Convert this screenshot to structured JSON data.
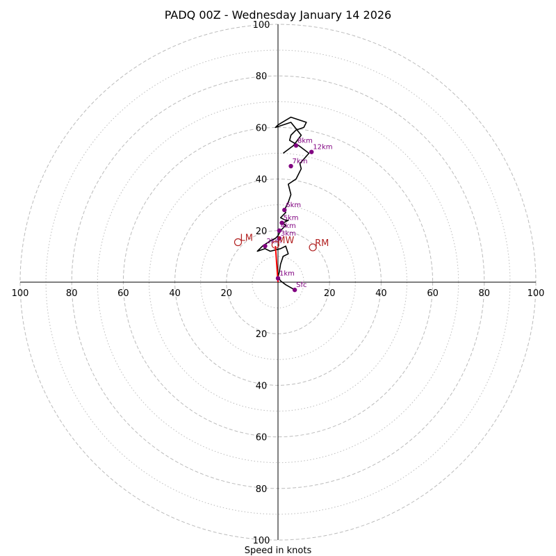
{
  "title": "PADQ 00Z - Wednesday January 14 2026",
  "chart_data": {
    "type": "line",
    "title": "PADQ 00Z - Wednesday January 14 2026",
    "xlabel": "Speed in knots",
    "ylabel": "",
    "xlim": [
      -100,
      100
    ],
    "ylim": [
      -100,
      100
    ],
    "grid": true,
    "ring_major": [
      20,
      40,
      60,
      80,
      100
    ],
    "ring_minor": [
      10,
      30,
      50,
      70,
      90
    ],
    "tick_labels": [
      "20",
      "40",
      "60",
      "80",
      "100"
    ],
    "hodograph": {
      "x": [
        6.5,
        3,
        1,
        0,
        0.5,
        1,
        2,
        4,
        3,
        1,
        -3,
        -5,
        -8,
        -6,
        -3,
        -1,
        0,
        1,
        2,
        3,
        2,
        4,
        3,
        1,
        2,
        3,
        2.5,
        4,
        5,
        4,
        7,
        9,
        8.5,
        12,
        8,
        4.5,
        5,
        7,
        10,
        11,
        5,
        0,
        -1,
        5,
        9,
        6,
        2
      ],
      "y": [
        -3,
        -1,
        0.5,
        2,
        4,
        7,
        10,
        11,
        14,
        13,
        12,
        13,
        12,
        14,
        16,
        17,
        18,
        20,
        21,
        22,
        23,
        24,
        24,
        25,
        26,
        27,
        28,
        31,
        34,
        38,
        40,
        44,
        46,
        50,
        53,
        55,
        57,
        59,
        60,
        62,
        64,
        61,
        60,
        62,
        57,
        53,
        50
      ],
      "color": "#000000"
    },
    "height_markers": [
      {
        "label": "Sfc",
        "x": 6.5,
        "y": -3
      },
      {
        "label": "1km",
        "x": 0,
        "y": 1.5
      },
      {
        "label": "2km",
        "x": -5,
        "y": 14
      },
      {
        "label": "3km",
        "x": 0.5,
        "y": 17
      },
      {
        "label": "4km",
        "x": 0.5,
        "y": 20
      },
      {
        "label": "5km",
        "x": 1.5,
        "y": 23
      },
      {
        "label": "6km",
        "x": 2.5,
        "y": 28
      },
      {
        "label": "7km",
        "x": 5,
        "y": 45
      },
      {
        "label": "8km",
        "x": 7,
        "y": 53
      },
      {
        "label": "12km",
        "x": 13,
        "y": 50.5
      }
    ],
    "motion_markers": [
      {
        "label": "LM",
        "x": -15.5,
        "y": 15.5
      },
      {
        "label": "MW",
        "x": -1,
        "y": 14.5
      },
      {
        "label": "RM",
        "x": 13.5,
        "y": 13.5
      }
    ],
    "storm_motion_vector": {
      "x": [
        0,
        -1
      ],
      "y": [
        0,
        14
      ]
    },
    "colors": {
      "hodograph": "#000000",
      "height_marker": "#800080",
      "motion_marker": "#b22222",
      "storm_vector": "#ff0000",
      "grid": "#bbbbbb"
    }
  }
}
